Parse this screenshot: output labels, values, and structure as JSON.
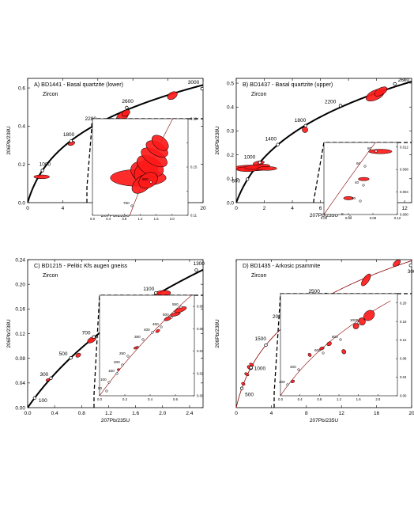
{
  "chart_data": [
    {
      "type": "scatter",
      "title": "A) BD1441 - Basal quartzite (lower)",
      "subtitle": "Zircon",
      "xlabel": "207Pb/235U",
      "ylabel": "206Pb/238U",
      "xlim": [
        0,
        20
      ],
      "ylim": [
        0,
        0.65
      ],
      "xticks": [
        0,
        4,
        8,
        12,
        16,
        20
      ],
      "yticks": [
        0.0,
        0.2,
        0.4,
        0.6
      ],
      "xtick_labels": [
        "0",
        "4",
        "8",
        "12",
        "16",
        "20"
      ],
      "ytick_labels": [
        "0.0",
        "0.2",
        "0.4",
        "0.6"
      ],
      "concordia_age_labels": [
        {
          "age": "1000",
          "x": 1.68,
          "y": 0.168
        },
        {
          "age": "1800",
          "x": 4.94,
          "y": 0.322
        },
        {
          "age": "2200",
          "x": 7.43,
          "y": 0.406
        },
        {
          "age": "2600",
          "x": 11.3,
          "y": 0.497
        },
        {
          "age": "3000",
          "x": 19.89,
          "y": 0.596
        }
      ],
      "ellipses": [
        {
          "x": 1.6,
          "y": 0.135,
          "rx": 0.9,
          "ry": 0.01,
          "angle": 0
        },
        {
          "x": 5.0,
          "y": 0.31,
          "rx": 0.4,
          "ry": 0.01,
          "angle": 20
        },
        {
          "x": 10.8,
          "y": 0.45,
          "rx": 0.8,
          "ry": 0.022,
          "angle": 40
        },
        {
          "x": 11.2,
          "y": 0.468,
          "rx": 0.5,
          "ry": 0.015,
          "angle": 30
        },
        {
          "x": 16.5,
          "y": 0.56,
          "rx": 0.6,
          "ry": 0.018,
          "angle": 30
        }
      ],
      "inset": {
        "xlim": [
          0.0,
          2.4
        ],
        "ylim": [
          0.11,
          0.19
        ],
        "xticks": [
          0.0,
          0.4,
          0.8,
          1.2,
          1.6,
          2.0
        ],
        "yticks": [
          0.11,
          0.13,
          0.15,
          0.17,
          0.19
        ],
        "xtick_labels": [
          "0.0",
          "0.4",
          "0.8",
          "1.2",
          "1.6",
          "2.0"
        ],
        "ytick_labels": [
          "0.11",
          "",
          "0.15",
          "",
          "0.19"
        ],
        "yticks_right": true,
        "age_labels": [
          {
            "age": "750"
          },
          {
            "age": "950"
          }
        ],
        "ellipses": [
          {
            "x": 1.15,
            "y": 0.141,
            "rx": 0.7,
            "ry": 0.007,
            "angle": 0
          },
          {
            "x": 1.3,
            "y": 0.145,
            "rx": 0.25,
            "ry": 0.012,
            "angle": 60
          },
          {
            "x": 1.35,
            "y": 0.147,
            "rx": 0.35,
            "ry": 0.008,
            "angle": 45
          },
          {
            "x": 1.45,
            "y": 0.151,
            "rx": 0.22,
            "ry": 0.012,
            "angle": 60
          },
          {
            "x": 1.55,
            "y": 0.158,
            "rx": 0.18,
            "ry": 0.012,
            "angle": 60
          },
          {
            "x": 1.62,
            "y": 0.165,
            "rx": 0.16,
            "ry": 0.01,
            "angle": 60
          },
          {
            "x": 1.25,
            "y": 0.136,
            "rx": 0.3,
            "ry": 0.006,
            "angle": 40
          },
          {
            "x": 1.4,
            "y": 0.139,
            "rx": 0.25,
            "ry": 0.006,
            "angle": 30
          },
          {
            "x": 1.7,
            "y": 0.17,
            "rx": 0.15,
            "ry": 0.008,
            "angle": 50
          }
        ]
      }
    },
    {
      "type": "scatter",
      "title": "B) BD1437 - Basal quartzite (upper)",
      "subtitle": "Zircon",
      "xlabel": "207Pb/235U",
      "ylabel": "206Pb/238U",
      "xlim": [
        0,
        12.5
      ],
      "ylim": [
        0,
        0.52
      ],
      "xticks": [
        0,
        2,
        4,
        6,
        8,
        10,
        12
      ],
      "yticks": [
        0.0,
        0.1,
        0.2,
        0.3,
        0.4,
        0.5
      ],
      "xtick_labels": [
        "0",
        "2",
        "4",
        "6",
        "8",
        "10",
        "12"
      ],
      "ytick_labels": [
        "0.0",
        "0.1",
        "0.2",
        "0.3",
        "0.4",
        "0.5"
      ],
      "concordia_age_labels": [
        {
          "age": "600",
          "x": 0.8,
          "y": 0.098
        },
        {
          "age": "1000",
          "x": 1.68,
          "y": 0.168
        },
        {
          "age": "1400",
          "x": 2.96,
          "y": 0.243
        },
        {
          "age": "1800",
          "x": 4.94,
          "y": 0.322
        },
        {
          "age": "2200",
          "x": 7.43,
          "y": 0.406
        },
        {
          "age": "2600",
          "x": 11.3,
          "y": 0.497
        }
      ],
      "ellipses": [
        {
          "x": 1.1,
          "y": 0.145,
          "rx": 1.3,
          "ry": 0.012,
          "angle": 0
        },
        {
          "x": 0.8,
          "y": 0.14,
          "rx": 0.8,
          "ry": 0.01,
          "angle": 0
        },
        {
          "x": 1.5,
          "y": 0.15,
          "rx": 0.9,
          "ry": 0.01,
          "angle": 5
        },
        {
          "x": 2.2,
          "y": 0.143,
          "rx": 0.7,
          "ry": 0.008,
          "angle": 0
        },
        {
          "x": 1.6,
          "y": 0.166,
          "rx": 0.4,
          "ry": 0.008,
          "angle": 10
        },
        {
          "x": 4.9,
          "y": 0.305,
          "rx": 0.2,
          "ry": 0.012,
          "angle": 60
        },
        {
          "x": 9.9,
          "y": 0.45,
          "rx": 0.7,
          "ry": 0.02,
          "angle": 25
        },
        {
          "x": 10.3,
          "y": 0.465,
          "rx": 0.5,
          "ry": 0.015,
          "angle": 30
        }
      ],
      "inset": {
        "xlim": [
          0.0,
          0.12
        ],
        "ylim": [
          0.0,
          0.0128
        ],
        "xticks": [
          0.0,
          0.04,
          0.08,
          0.12
        ],
        "yticks": [
          0.0,
          0.004,
          0.008,
          0.012
        ],
        "xtick_labels": [
          "0.00",
          "0.04",
          "0.08",
          "0.12"
        ],
        "ytick_labels": [
          "0.000",
          "0.004",
          "0.008",
          "0.012"
        ],
        "yticks_right": true,
        "age_labels": [
          {
            "age": "0"
          },
          {
            "age": "20"
          },
          {
            "age": "40"
          },
          {
            "age": "60"
          },
          {
            "age": "80"
          }
        ],
        "ellipses": [
          {
            "x": 0.04,
            "y": 0.0029,
            "rx": 0.008,
            "ry": 0.0003,
            "angle": 0
          },
          {
            "x": 0.065,
            "y": 0.0063,
            "rx": 0.009,
            "ry": 0.0003,
            "angle": 0
          },
          {
            "x": 0.092,
            "y": 0.0112,
            "rx": 0.019,
            "ry": 0.0004,
            "angle": 0
          }
        ]
      }
    },
    {
      "type": "scatter",
      "title": "C) BD1215 - Pelitic Kfs augen gneiss",
      "subtitle": "Zircon",
      "xlabel": "207Pb/235U",
      "ylabel": "206Pb/238U",
      "xlim": [
        0,
        2.6
      ],
      "ylim": [
        0,
        0.24
      ],
      "xticks": [
        0.0,
        0.4,
        0.8,
        1.2,
        1.6,
        2.0,
        2.4
      ],
      "yticks": [
        0.0,
        0.04,
        0.08,
        0.12,
        0.16,
        0.2,
        0.24
      ],
      "xtick_labels": [
        "0.0",
        "0.4",
        "0.8",
        "1.2",
        "1.6",
        "2.0",
        "2.4"
      ],
      "ytick_labels": [
        "0.00",
        "0.04",
        "0.08",
        "0.12",
        "0.16",
        "0.20",
        "0.24"
      ],
      "concordia_age_labels": [
        {
          "age": "100",
          "x": 0.104,
          "y": 0.0157
        },
        {
          "age": "300",
          "x": 0.345,
          "y": 0.0477
        },
        {
          "age": "500",
          "x": 0.64,
          "y": 0.0806
        },
        {
          "age": "700",
          "x": 0.98,
          "y": 0.1146
        },
        {
          "age": "900",
          "x": 1.39,
          "y": 0.1499
        },
        {
          "age": "1100",
          "x": 1.9,
          "y": 0.1861
        },
        {
          "age": "1300",
          "x": 2.5,
          "y": 0.223
        }
      ],
      "ellipses": [
        {
          "x": 0.3,
          "y": 0.045,
          "rx": 0.03,
          "ry": 0.002,
          "angle": 20
        },
        {
          "x": 0.75,
          "y": 0.085,
          "rx": 0.04,
          "ry": 0.003,
          "angle": 30
        },
        {
          "x": 0.95,
          "y": 0.11,
          "rx": 0.07,
          "ry": 0.004,
          "angle": 30
        },
        {
          "x": 1.42,
          "y": 0.15,
          "rx": 0.2,
          "ry": 0.009,
          "angle": 35
        },
        {
          "x": 1.48,
          "y": 0.158,
          "rx": 0.14,
          "ry": 0.006,
          "angle": 35
        },
        {
          "x": 2.0,
          "y": 0.185,
          "rx": 0.12,
          "ry": 0.005,
          "angle": 5
        }
      ],
      "inset": {
        "xlim": [
          0.0,
          0.75
        ],
        "ylim": [
          0.0,
          0.09
        ],
        "xticks": [
          0.0,
          0.2,
          0.4,
          0.6
        ],
        "yticks": [
          0.0,
          0.02,
          0.04,
          0.06,
          0.08
        ],
        "xtick_labels": [
          "0.0",
          "0.2",
          "0.4",
          "0.6"
        ],
        "ytick_labels": [
          "0.00",
          "0.02",
          "0.04",
          "0.06",
          "0.08"
        ],
        "yticks_right": true,
        "age_labels": [
          {
            "age": "50"
          },
          {
            "age": "100"
          },
          {
            "age": "150"
          },
          {
            "age": "200"
          },
          {
            "age": "250"
          },
          {
            "age": "350"
          },
          {
            "age": "400"
          },
          {
            "age": "450"
          },
          {
            "age": "500"
          },
          {
            "age": "550"
          }
        ],
        "ellipses": [
          {
            "x": 0.15,
            "y": 0.0235,
            "rx": 0.01,
            "ry": 0.0008,
            "angle": 20
          },
          {
            "x": 0.29,
            "y": 0.043,
            "rx": 0.02,
            "ry": 0.001,
            "angle": 20
          },
          {
            "x": 0.46,
            "y": 0.058,
            "rx": 0.018,
            "ry": 0.0012,
            "angle": 30
          },
          {
            "x": 0.54,
            "y": 0.069,
            "rx": 0.03,
            "ry": 0.0015,
            "angle": 20
          },
          {
            "x": 0.6,
            "y": 0.073,
            "rx": 0.04,
            "ry": 0.0015,
            "angle": 15
          },
          {
            "x": 0.64,
            "y": 0.077,
            "rx": 0.05,
            "ry": 0.002,
            "angle": 20
          }
        ]
      }
    },
    {
      "type": "scatter",
      "title": "D) BD1435 - Arkosic psammite",
      "subtitle": "Zircon",
      "xlabel": "207Pb/235U",
      "ylabel": "206Pb/238U",
      "xlim": [
        0,
        20
      ],
      "ylim": [
        0,
        0.62
      ],
      "xticks": [
        0,
        4,
        8,
        12,
        16,
        20
      ],
      "yticks": [],
      "xtick_labels": [
        "0",
        "4",
        "8",
        "12",
        "16",
        "20"
      ],
      "ytick_labels": [],
      "concordia_age_labels": [
        {
          "age": "500",
          "x": 0.64,
          "y": 0.0806
        },
        {
          "age": "1000",
          "x": 1.68,
          "y": 0.168
        },
        {
          "age": "1500",
          "x": 3.38,
          "y": 0.262
        },
        {
          "age": "2000",
          "x": 6.12,
          "y": 0.365
        },
        {
          "age": "2500",
          "x": 10.22,
          "y": 0.474
        },
        {
          "age": "3000",
          "x": 19.89,
          "y": 0.596
        }
      ],
      "ellipses": [
        {
          "x": 0.8,
          "y": 0.1,
          "rx": 0.15,
          "ry": 0.008,
          "angle": 60
        },
        {
          "x": 1.2,
          "y": 0.14,
          "rx": 0.15,
          "ry": 0.01,
          "angle": 60
        },
        {
          "x": 1.55,
          "y": 0.168,
          "rx": 0.2,
          "ry": 0.012,
          "angle": 60
        },
        {
          "x": 1.75,
          "y": 0.18,
          "rx": 0.15,
          "ry": 0.01,
          "angle": 60
        },
        {
          "x": 14.8,
          "y": 0.535,
          "rx": 0.8,
          "ry": 0.012,
          "angle": 55
        },
        {
          "x": 18.3,
          "y": 0.605,
          "rx": 0.5,
          "ry": 0.01,
          "angle": 40
        }
      ],
      "inset": {
        "xlim": [
          0.0,
          2.4
        ],
        "ylim": [
          0.0,
          0.22
        ],
        "xticks": [
          0.0,
          0.4,
          0.8,
          1.2,
          1.6,
          2.0
        ],
        "yticks": [
          0.0,
          0.04,
          0.08,
          0.12,
          0.16,
          0.2
        ],
        "xtick_labels": [
          "0.0",
          "0.4",
          "0.8",
          "1.2",
          "1.6",
          "2.0"
        ],
        "ytick_labels": [
          "0.00",
          "0.04",
          "0.08",
          "0.12",
          "0.16",
          "0.20"
        ],
        "yticks_right": true,
        "age_labels": [
          {
            "age": "200"
          },
          {
            "age": "400"
          },
          {
            "age": "600"
          },
          {
            "age": "800"
          },
          {
            "age": "1000"
          }
        ],
        "ellipses": [
          {
            "x": 0.25,
            "y": 0.031,
            "rx": 0.04,
            "ry": 0.003,
            "angle": 20
          },
          {
            "x": 0.6,
            "y": 0.088,
            "rx": 0.03,
            "ry": 0.004,
            "angle": 40
          },
          {
            "x": 0.85,
            "y": 0.102,
            "rx": 0.05,
            "ry": 0.003,
            "angle": 20
          },
          {
            "x": 1.0,
            "y": 0.112,
            "rx": 0.05,
            "ry": 0.004,
            "angle": 30
          },
          {
            "x": 1.3,
            "y": 0.095,
            "rx": 0.04,
            "ry": 0.005,
            "angle": 30
          },
          {
            "x": 1.55,
            "y": 0.15,
            "rx": 0.06,
            "ry": 0.006,
            "angle": 40
          },
          {
            "x": 1.67,
            "y": 0.16,
            "rx": 0.07,
            "ry": 0.008,
            "angle": 40
          },
          {
            "x": 1.82,
            "y": 0.173,
            "rx": 0.12,
            "ry": 0.01,
            "angle": 40
          }
        ]
      }
    }
  ]
}
